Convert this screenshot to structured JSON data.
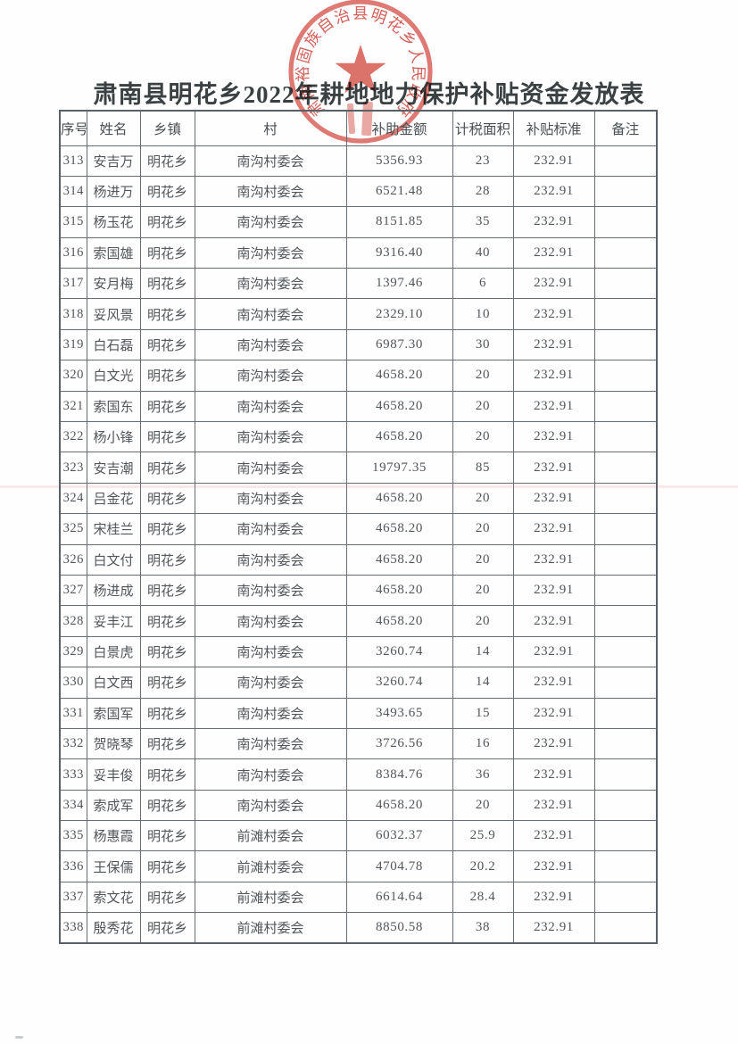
{
  "page": {
    "title": "肃南县明花乡2022年耕地地力保护补贴资金发放表"
  },
  "seal": {
    "text": "肃南裕固族自治县明花乡人民政府",
    "shape": "round-government-seal-with-star",
    "color": "#d6544b"
  },
  "colors": {
    "seal_red": "#d6544b",
    "table_border": "#666e74",
    "body_text": "#51565a",
    "title_text": "#3b4143",
    "page_background": "#fefefe"
  },
  "table": {
    "headers": [
      "序号",
      "姓名",
      "乡镇",
      "村",
      "补助金额",
      "计税面积",
      "补贴标准",
      "备注"
    ],
    "rows": [
      {
        "seq": "313",
        "name": "安吉万",
        "township": "明花乡",
        "village": "南沟村委会",
        "amount": "5356.93",
        "area": "23",
        "standard": "232.91",
        "note": ""
      },
      {
        "seq": "314",
        "name": "杨进万",
        "township": "明花乡",
        "village": "南沟村委会",
        "amount": "6521.48",
        "area": "28",
        "standard": "232.91",
        "note": ""
      },
      {
        "seq": "315",
        "name": "杨玉花",
        "township": "明花乡",
        "village": "南沟村委会",
        "amount": "8151.85",
        "area": "35",
        "standard": "232.91",
        "note": ""
      },
      {
        "seq": "316",
        "name": "索国雄",
        "township": "明花乡",
        "village": "南沟村委会",
        "amount": "9316.40",
        "area": "40",
        "standard": "232.91",
        "note": ""
      },
      {
        "seq": "317",
        "name": "安月梅",
        "township": "明花乡",
        "village": "南沟村委会",
        "amount": "1397.46",
        "area": "6",
        "standard": "232.91",
        "note": ""
      },
      {
        "seq": "318",
        "name": "妥风景",
        "township": "明花乡",
        "village": "南沟村委会",
        "amount": "2329.10",
        "area": "10",
        "standard": "232.91",
        "note": ""
      },
      {
        "seq": "319",
        "name": "白石磊",
        "township": "明花乡",
        "village": "南沟村委会",
        "amount": "6987.30",
        "area": "30",
        "standard": "232.91",
        "note": ""
      },
      {
        "seq": "320",
        "name": "白文光",
        "township": "明花乡",
        "village": "南沟村委会",
        "amount": "4658.20",
        "area": "20",
        "standard": "232.91",
        "note": ""
      },
      {
        "seq": "321",
        "name": "索国东",
        "township": "明花乡",
        "village": "南沟村委会",
        "amount": "4658.20",
        "area": "20",
        "standard": "232.91",
        "note": ""
      },
      {
        "seq": "322",
        "name": "杨小锋",
        "township": "明花乡",
        "village": "南沟村委会",
        "amount": "4658.20",
        "area": "20",
        "standard": "232.91",
        "note": ""
      },
      {
        "seq": "323",
        "name": "安吉潮",
        "township": "明花乡",
        "village": "南沟村委会",
        "amount": "19797.35",
        "area": "85",
        "standard": "232.91",
        "note": ""
      },
      {
        "seq": "324",
        "name": "吕金花",
        "township": "明花乡",
        "village": "南沟村委会",
        "amount": "4658.20",
        "area": "20",
        "standard": "232.91",
        "note": ""
      },
      {
        "seq": "325",
        "name": "宋桂兰",
        "township": "明花乡",
        "village": "南沟村委会",
        "amount": "4658.20",
        "area": "20",
        "standard": "232.91",
        "note": ""
      },
      {
        "seq": "326",
        "name": "白文付",
        "township": "明花乡",
        "village": "南沟村委会",
        "amount": "4658.20",
        "area": "20",
        "standard": "232.91",
        "note": ""
      },
      {
        "seq": "327",
        "name": "杨进成",
        "township": "明花乡",
        "village": "南沟村委会",
        "amount": "4658.20",
        "area": "20",
        "standard": "232.91",
        "note": ""
      },
      {
        "seq": "328",
        "name": "妥丰江",
        "township": "明花乡",
        "village": "南沟村委会",
        "amount": "4658.20",
        "area": "20",
        "standard": "232.91",
        "note": ""
      },
      {
        "seq": "329",
        "name": "白景虎",
        "township": "明花乡",
        "village": "南沟村委会",
        "amount": "3260.74",
        "area": "14",
        "standard": "232.91",
        "note": ""
      },
      {
        "seq": "330",
        "name": "白文西",
        "township": "明花乡",
        "village": "南沟村委会",
        "amount": "3260.74",
        "area": "14",
        "standard": "232.91",
        "note": ""
      },
      {
        "seq": "331",
        "name": "索国军",
        "township": "明花乡",
        "village": "南沟村委会",
        "amount": "3493.65",
        "area": "15",
        "standard": "232.91",
        "note": ""
      },
      {
        "seq": "332",
        "name": "贺晓琴",
        "township": "明花乡",
        "village": "南沟村委会",
        "amount": "3726.56",
        "area": "16",
        "standard": "232.91",
        "note": ""
      },
      {
        "seq": "333",
        "name": "妥丰俊",
        "township": "明花乡",
        "village": "南沟村委会",
        "amount": "8384.76",
        "area": "36",
        "standard": "232.91",
        "note": ""
      },
      {
        "seq": "334",
        "name": "索成军",
        "township": "明花乡",
        "village": "南沟村委会",
        "amount": "4658.20",
        "area": "20",
        "standard": "232.91",
        "note": ""
      },
      {
        "seq": "335",
        "name": "杨惠霞",
        "township": "明花乡",
        "village": "前滩村委会",
        "amount": "6032.37",
        "area": "25.9",
        "standard": "232.91",
        "note": ""
      },
      {
        "seq": "336",
        "name": "王保儒",
        "township": "明花乡",
        "village": "前滩村委会",
        "amount": "4704.78",
        "area": "20.2",
        "standard": "232.91",
        "note": ""
      },
      {
        "seq": "337",
        "name": "索文花",
        "township": "明花乡",
        "village": "前滩村委会",
        "amount": "6614.64",
        "area": "28.4",
        "standard": "232.91",
        "note": ""
      },
      {
        "seq": "338",
        "name": "殷秀花",
        "township": "明花乡",
        "village": "前滩村委会",
        "amount": "8850.58",
        "area": "38",
        "standard": "232.91",
        "note": ""
      }
    ]
  }
}
